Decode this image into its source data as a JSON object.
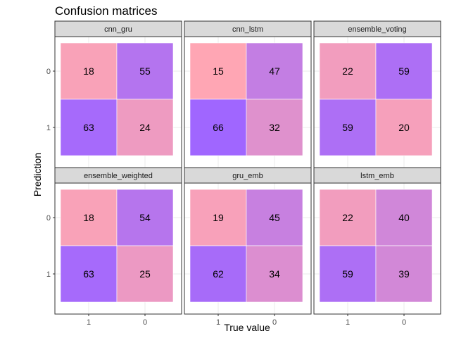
{
  "chart_data": {
    "type": "heatmap",
    "title": "Confusion matrices",
    "xlabel": "True value",
    "ylabel": "Prediction",
    "x_categories": [
      "1",
      "0"
    ],
    "y_categories": [
      "0",
      "1"
    ],
    "grid": true,
    "legend": "none",
    "color_scale": {
      "low": "#a066ff",
      "high": "#ffa6b4"
    },
    "panels": [
      {
        "name": "cnn_gru",
        "cells": [
          {
            "true": "1",
            "pred": "0",
            "value": 18
          },
          {
            "true": "0",
            "pred": "0",
            "value": 55
          },
          {
            "true": "1",
            "pred": "1",
            "value": 63
          },
          {
            "true": "0",
            "pred": "1",
            "value": 24
          }
        ]
      },
      {
        "name": "cnn_lstm",
        "cells": [
          {
            "true": "1",
            "pred": "0",
            "value": 15
          },
          {
            "true": "0",
            "pred": "0",
            "value": 47
          },
          {
            "true": "1",
            "pred": "1",
            "value": 66
          },
          {
            "true": "0",
            "pred": "1",
            "value": 32
          }
        ]
      },
      {
        "name": "ensemble_voting",
        "cells": [
          {
            "true": "1",
            "pred": "0",
            "value": 22
          },
          {
            "true": "0",
            "pred": "0",
            "value": 59
          },
          {
            "true": "1",
            "pred": "1",
            "value": 59
          },
          {
            "true": "0",
            "pred": "1",
            "value": 20
          }
        ]
      },
      {
        "name": "ensemble_weighted",
        "cells": [
          {
            "true": "1",
            "pred": "0",
            "value": 18
          },
          {
            "true": "0",
            "pred": "0",
            "value": 54
          },
          {
            "true": "1",
            "pred": "1",
            "value": 63
          },
          {
            "true": "0",
            "pred": "1",
            "value": 25
          }
        ]
      },
      {
        "name": "gru_emb",
        "cells": [
          {
            "true": "1",
            "pred": "0",
            "value": 19
          },
          {
            "true": "0",
            "pred": "0",
            "value": 45
          },
          {
            "true": "1",
            "pred": "1",
            "value": 62
          },
          {
            "true": "0",
            "pred": "1",
            "value": 34
          }
        ]
      },
      {
        "name": "lstm_emb",
        "cells": [
          {
            "true": "1",
            "pred": "0",
            "value": 22
          },
          {
            "true": "0",
            "pred": "0",
            "value": 40
          },
          {
            "true": "1",
            "pred": "1",
            "value": 59
          },
          {
            "true": "0",
            "pred": "1",
            "value": 39
          }
        ]
      }
    ]
  }
}
